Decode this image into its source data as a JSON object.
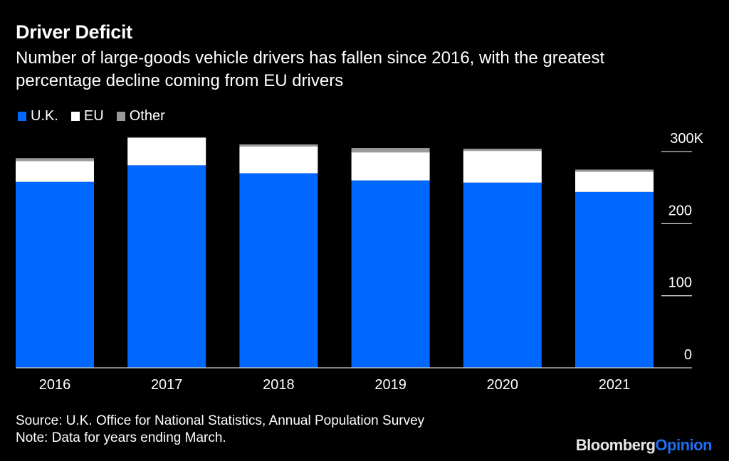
{
  "header": {
    "title": "Driver Deficit",
    "subtitle": "Number of large-goods vehicle drivers has fallen since 2016, with the greatest percentage decline coming from EU drivers"
  },
  "legend": [
    {
      "label": "U.K.",
      "color": "#0068ff"
    },
    {
      "label": "EU",
      "color": "#ffffff"
    },
    {
      "label": "Other",
      "color": "#9a9a9a"
    }
  ],
  "footer": {
    "source": "Source: U.K. Office for National Statistics, Annual Population Survey",
    "note": "Note: Data for years ending March."
  },
  "brand": {
    "part1": "Bloomberg",
    "part2": "Opinion"
  },
  "chart_data": {
    "type": "bar",
    "stacked": true,
    "title": "Driver Deficit",
    "subtitle": "Number of large-goods vehicle drivers has fallen since 2016, with the greatest percentage decline coming from EU drivers",
    "xlabel": "",
    "ylabel": "",
    "categories": [
      "2016",
      "2017",
      "2018",
      "2019",
      "2020",
      "2021"
    ],
    "series": [
      {
        "name": "U.K.",
        "color": "#0068ff",
        "values": [
          258,
          281,
          270,
          260,
          257,
          244
        ]
      },
      {
        "name": "EU",
        "color": "#ffffff",
        "values": [
          29,
          38,
          37,
          39,
          44,
          28
        ]
      },
      {
        "name": "Other",
        "color": "#9a9a9a",
        "values": [
          4,
          1,
          3,
          6,
          3,
          3
        ]
      }
    ],
    "ylim": [
      0,
      300
    ],
    "yticks": [
      0,
      100,
      200,
      300
    ],
    "ytick_labels": [
      "0",
      "100",
      "200",
      "300K"
    ],
    "y_axis_side": "right",
    "units": "thousands",
    "grid": false,
    "legend_position": "top-left"
  }
}
